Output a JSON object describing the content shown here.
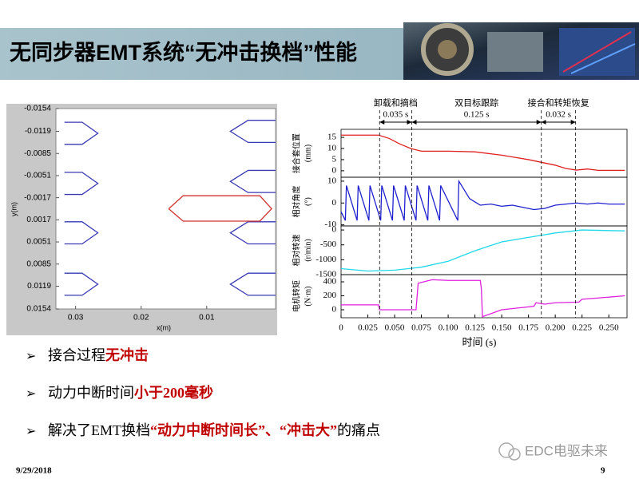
{
  "header": {
    "title": "无同步器EMT系统“无冲击换档”性能"
  },
  "chart_data": [
    {
      "type": "line",
      "xlabel": "x(m)",
      "ylabel": "y(m)",
      "xlim": [
        0.033,
        -0.0005
      ],
      "xticks": [
        0.03,
        0.02,
        0.01
      ],
      "ylim": [
        0.0154,
        -0.0154
      ],
      "yticks": [
        -0.0154,
        -0.0119,
        -0.0085,
        -0.0051,
        -0.0017,
        0.0017,
        0.0051,
        0.0085,
        0.0119,
        0.0154
      ],
      "series": [
        {
          "color": "#3a3ab4",
          "x": [
            0.0317,
            0.029,
            0.0266,
            0.029,
            0.0317
          ],
          "values": [
            -0.0133,
            -0.0133,
            -0.0116,
            -0.0099,
            -0.0099
          ]
        },
        {
          "color": "#3a3ab4",
          "x": [
            0.0317,
            0.029,
            0.0266,
            0.029,
            0.0317
          ],
          "values": [
            -0.0056,
            -0.0056,
            -0.0039,
            -0.0022,
            -0.0022
          ]
        },
        {
          "color": "#3a3ab4",
          "x": [
            0.0317,
            0.029,
            0.0266,
            0.029,
            0.0317
          ],
          "values": [
            0.002,
            0.002,
            0.0037,
            0.0054,
            0.0054
          ]
        },
        {
          "color": "#3a3ab4",
          "x": [
            0.0317,
            0.029,
            0.0266,
            0.029,
            0.0317
          ],
          "values": [
            0.0099,
            0.0099,
            0.0116,
            0.0133,
            0.0133
          ]
        },
        {
          "color": "#3a3ab4",
          "x": [
            -0.0005,
            0.0037,
            0.0064,
            0.0037,
            -0.0005
          ],
          "values": [
            -0.0136,
            -0.0136,
            -0.0119,
            -0.0102,
            -0.0102
          ]
        },
        {
          "color": "#3a3ab4",
          "x": [
            -0.0005,
            0.0037,
            0.0064,
            0.0037,
            -0.0005
          ],
          "values": [
            -0.0059,
            -0.0059,
            -0.0042,
            -0.0025,
            -0.0025
          ]
        },
        {
          "color": "#3a3ab4",
          "x": [
            -0.0005,
            0.0037,
            0.0064,
            0.0037,
            -0.0005
          ],
          "values": [
            0.002,
            0.002,
            0.0037,
            0.0054,
            0.0054
          ]
        },
        {
          "color": "#3a3ab4",
          "x": [
            -0.0005,
            0.0037,
            0.0064,
            0.0037,
            -0.0005
          ],
          "values": [
            0.0099,
            0.0099,
            0.0116,
            0.0133,
            0.0133
          ]
        },
        {
          "color": "#d03030",
          "x": [
            0.0158,
            0.0136,
            0.0019,
            0.0001,
            0.0019,
            0.0136,
            0.0158
          ],
          "values": [
            0,
            -0.002,
            -0.002,
            0,
            0.0019,
            0.0019,
            0
          ]
        }
      ]
    },
    {
      "type": "line",
      "xlabel": "时间 (s)",
      "xlim": [
        0,
        0.267
      ],
      "xticks": [
        0,
        0.025,
        {
          "value": 0.05,
          "label": "0.050"
        },
        0.075,
        {
          "value": 0.1,
          "label": "0.100"
        },
        0.125,
        {
          "value": 0.15,
          "label": "0.150"
        },
        0.175,
        {
          "value": 0.2,
          "label": "0.200"
        },
        0.225,
        {
          "value": 0.25,
          "label": "0.250"
        }
      ],
      "vlines": [
        0.036,
        0.066,
        0.187,
        0.219
      ],
      "phases": [
        {
          "label": "卸载和摘档",
          "duration": "0.035 s"
        },
        {
          "label": "双目标跟踪",
          "duration": "0.125 s"
        },
        {
          "label": "接合和转矩恢复",
          "duration": "0.032 s"
        }
      ],
      "panels": [
        {
          "ylabel": "接合套位置",
          "yunit": "(mm)",
          "ylim": [
            -2.9,
            18.6
          ],
          "yticks": [
            0,
            5,
            10,
            15
          ],
          "color": "#e02020",
          "x": [
            0,
            0.035,
            0.045,
            0.055,
            0.065,
            0.075,
            0.1,
            0.125,
            0.15,
            0.175,
            0.2,
            0.21,
            0.22,
            0.23,
            0.24,
            0.25,
            0.265
          ],
          "values": [
            16,
            16,
            14.5,
            12,
            10,
            8.8,
            8.8,
            8.5,
            7,
            5,
            2.5,
            1,
            0.3,
            0.8,
            0.2,
            0.2,
            0.2
          ]
        },
        {
          "ylabel": "相对角度",
          "yunit": "(°)",
          "ylim": [
            -10.5,
            11.8
          ],
          "yticks": [
            -10,
            0,
            10
          ],
          "color": "#2020d0",
          "x": [
            0,
            0.004,
            0.005,
            0.015,
            0.016,
            0.026,
            0.027,
            0.037,
            0.038,
            0.048,
            0.049,
            0.059,
            0.06,
            0.07,
            0.071,
            0.081,
            0.082,
            0.092,
            0.093,
            0.109,
            0.11,
            0.12,
            0.13,
            0.14,
            0.15,
            0.16,
            0.17,
            0.18,
            0.19,
            0.2,
            0.21,
            0.22,
            0.23,
            0.24,
            0.25,
            0.265
          ],
          "values": [
            -4,
            -8,
            8,
            -8,
            8,
            -8,
            8,
            -8,
            8,
            -8,
            8,
            -8,
            8,
            -8,
            8,
            -8,
            8,
            -8,
            8,
            -8,
            10,
            2,
            -1,
            -0.5,
            -1.5,
            -1,
            -2,
            -3,
            -2.5,
            -1,
            -0.5,
            0,
            -0.5,
            0,
            -0.5,
            -0.5
          ]
        },
        {
          "ylabel": "相对转速",
          "yunit": "(r/min)",
          "ylim": [
            -1500,
            136
          ],
          "yticks": [
            -1500,
            -1000,
            -500,
            0
          ],
          "color": "#20d8e8",
          "x": [
            0,
            0.025,
            0.05,
            0.075,
            0.1,
            0.125,
            0.15,
            0.175,
            0.2,
            0.225,
            0.25,
            0.265
          ],
          "values": [
            -1300,
            -1380,
            -1350,
            -1250,
            -1050,
            -700,
            -400,
            -250,
            -100,
            0,
            -20,
            -30
          ]
        },
        {
          "ylabel": "电机转矩",
          "yunit": "(N·m)",
          "ylim": [
            -114,
            503
          ],
          "yticks": [
            0,
            200,
            400
          ],
          "color": "#e020e0",
          "x": [
            0,
            0.035,
            0.036,
            0.069,
            0.07,
            0.072,
            0.085,
            0.1,
            0.13,
            0.131,
            0.132,
            0.15,
            0.18,
            0.182,
            0.19,
            0.2,
            0.222,
            0.225,
            0.265
          ],
          "values": [
            70,
            70,
            0,
            0,
            0,
            380,
            430,
            420,
            420,
            300,
            -100,
            0,
            50,
            100,
            80,
            100,
            110,
            150,
            200
          ]
        }
      ]
    }
  ],
  "bullets": [
    [
      {
        "text": "接合过程"
      },
      {
        "text": "无冲击",
        "color": "#c00000"
      }
    ],
    [
      {
        "text": "动力中断时间"
      },
      {
        "text": "小于200毫秒",
        "color": "#c00000"
      }
    ],
    [
      {
        "text": "解决了EMT换档"
      },
      {
        "text": "“动力中断时间长”、“冲击大”",
        "color": "#c00000"
      },
      {
        "text": "的痛点"
      }
    ]
  ],
  "footer": {
    "date": "9/29/2018",
    "page": "9",
    "watermark": "EDC电驱未来"
  }
}
